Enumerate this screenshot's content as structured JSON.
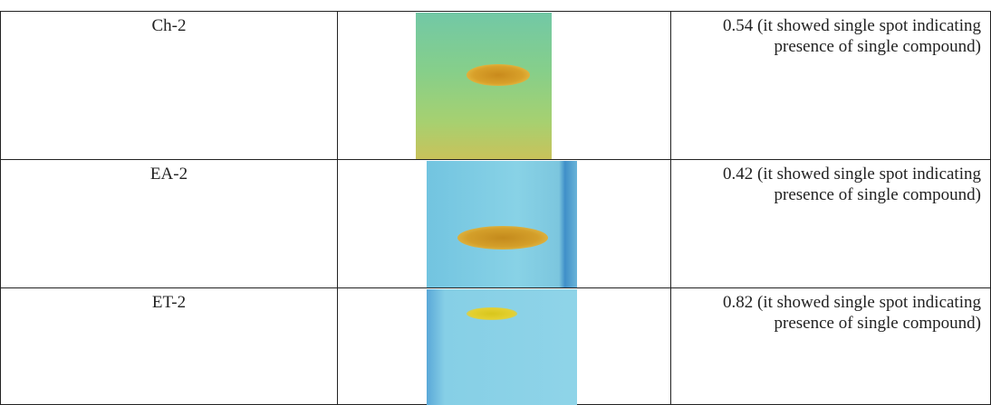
{
  "table": {
    "rows": [
      [
        "Ch-2",
        "0.54 (it showed single spot indicating presence of single compound)"
      ],
      [
        "EA-2",
        "0.42 (it showed single spot indicating presence of single compound)"
      ],
      [
        "ET-2",
        "0.82 (it showed single spot indicating presence of single compound)"
      ]
    ]
  }
}
